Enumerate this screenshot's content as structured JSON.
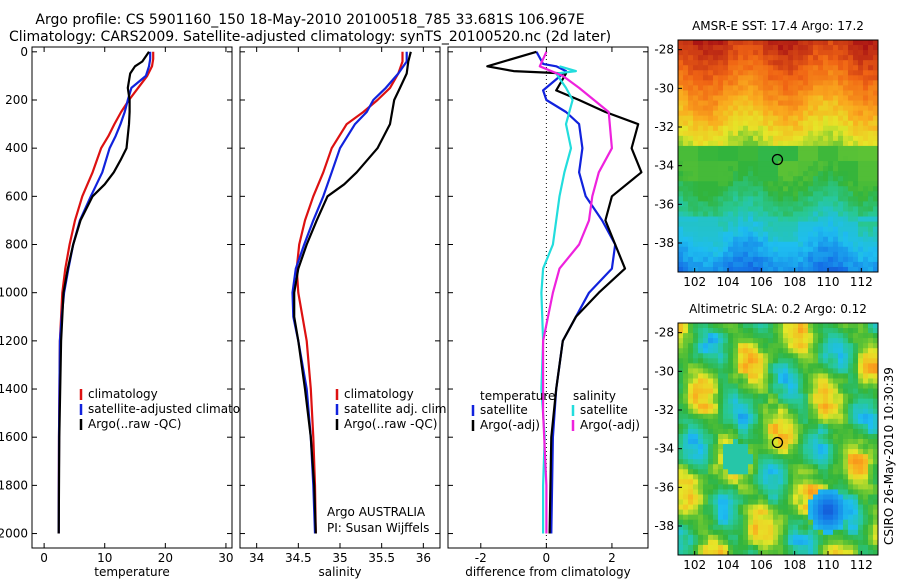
{
  "header": {
    "title_line1": "Argo profile: CS 5901160_150 18-May-2010 20100518_785 33.681S 106.967E",
    "title_line2": "Climatology: CARS2009. Satellite-adjusted climatology: synTS_20100520.nc (2d later)"
  },
  "colors": {
    "red": "#dd1111",
    "blue": "#1122dd",
    "black": "#000000",
    "cyan": "#22dddd",
    "magenta": "#ee22dd"
  },
  "chart_data": [
    {
      "type": "line",
      "id": "temperature",
      "xlabel": "temperature",
      "xlim": [
        -2,
        31
      ],
      "ylim": [
        2060,
        -20
      ],
      "xticks": [
        0,
        10,
        20,
        30
      ],
      "yticks": [
        0,
        200,
        400,
        600,
        800,
        1000,
        1200,
        1400,
        1600,
        1800,
        2000
      ],
      "legend": [
        "climatology",
        "satellite-adjusted climatology",
        "Argo(..raw -QC)"
      ],
      "series": [
        {
          "name": "climatology",
          "color": "red",
          "x": [
            18.0,
            18.0,
            17.8,
            17.0,
            15.5,
            14.0,
            12.7,
            11.6,
            10.6,
            9.4,
            8.0,
            6.3,
            5.1,
            4.2,
            3.5,
            3.0,
            2.6,
            2.45,
            2.4
          ],
          "y": [
            0,
            30,
            60,
            100,
            150,
            200,
            250,
            300,
            350,
            400,
            500,
            600,
            700,
            800,
            900,
            1000,
            1200,
            1600,
            2000
          ]
        },
        {
          "name": "satellite-adjusted climatology",
          "color": "blue",
          "x": [
            17.5,
            17.5,
            17.3,
            16.8,
            14.4,
            13.8,
            13.3,
            12.6,
            11.8,
            10.8,
            9.6,
            7.7,
            5.9,
            4.8,
            4.0,
            3.3,
            2.9,
            2.6,
            2.45,
            2.4
          ],
          "y": [
            0,
            30,
            60,
            100,
            150,
            200,
            250,
            300,
            350,
            400,
            500,
            600,
            700,
            800,
            900,
            1000,
            1100,
            1200,
            1600,
            2000
          ]
        },
        {
          "name": "Argo(..raw -QC)",
          "color": "black",
          "x": [
            17.3,
            16.2,
            15.0,
            14.2,
            13.8,
            14.1,
            14.1,
            14.0,
            13.6,
            12.6,
            11.5,
            10.0,
            8.0,
            6.0,
            4.8,
            3.9,
            3.2,
            2.8,
            2.5,
            2.4
          ],
          "y": [
            0,
            40,
            60,
            90,
            150,
            200,
            250,
            300,
            400,
            450,
            500,
            550,
            600,
            700,
            800,
            900,
            1000,
            1200,
            1600,
            2000
          ]
        }
      ]
    },
    {
      "type": "line",
      "id": "salinity",
      "xlabel": "salinity",
      "xlim": [
        33.8,
        36.2
      ],
      "ylim": [
        2060,
        -20
      ],
      "xticks": [
        34,
        34.5,
        35,
        35.5,
        36
      ],
      "legend": [
        "climatology",
        "satellite adj. clim.",
        "Argo(..raw -QC)"
      ],
      "series": [
        {
          "name": "climatology",
          "color": "red",
          "x": [
            35.75,
            35.75,
            35.7,
            35.6,
            35.45,
            35.28,
            35.08,
            34.9,
            34.8,
            34.68,
            34.58,
            34.51,
            34.48,
            34.5,
            34.55,
            34.6,
            34.65,
            34.68,
            34.7,
            34.71
          ],
          "y": [
            0,
            40,
            90,
            150,
            200,
            250,
            300,
            400,
            500,
            600,
            700,
            800,
            900,
            1000,
            1100,
            1200,
            1400,
            1600,
            1800,
            2000
          ]
        },
        {
          "name": "satellite adj. clim.",
          "color": "blue",
          "x": [
            35.8,
            35.8,
            35.7,
            35.55,
            35.4,
            35.32,
            35.18,
            35.0,
            34.9,
            34.8,
            34.68,
            34.57,
            34.47,
            34.43,
            34.44,
            34.5,
            34.6,
            34.65,
            34.68,
            34.7
          ],
          "y": [
            0,
            40,
            90,
            150,
            200,
            250,
            300,
            400,
            500,
            600,
            700,
            800,
            900,
            1000,
            1100,
            1200,
            1400,
            1600,
            1800,
            2000
          ]
        },
        {
          "name": "Argo(..raw -QC)",
          "color": "black",
          "x": [
            35.85,
            35.82,
            35.8,
            35.72,
            35.65,
            35.6,
            35.45,
            35.2,
            35.05,
            34.85,
            34.72,
            34.6,
            34.5,
            34.45,
            34.45,
            34.5,
            34.58,
            34.65,
            34.69,
            34.71
          ],
          "y": [
            0,
            40,
            90,
            150,
            200,
            300,
            400,
            500,
            550,
            600,
            700,
            800,
            900,
            1000,
            1100,
            1200,
            1400,
            1600,
            1800,
            2000
          ]
        }
      ],
      "annotation": [
        "Argo AUSTRALIA",
        "PI: Susan Wijffels"
      ]
    },
    {
      "type": "line",
      "id": "difference",
      "xlabel": "difference from climatology",
      "xlim": [
        -3,
        3.1
      ],
      "ylim": [
        2060,
        -20
      ],
      "xticks": [
        -2,
        0,
        2
      ],
      "legend_titles": [
        "temperature",
        "salinity"
      ],
      "legend": [
        "satellite",
        "Argo(-adj)",
        "satellite",
        "Argo(-adj)"
      ],
      "series": [
        {
          "name": "temperature satellite",
          "color": "blue",
          "x": [
            -0.3,
            -0.1,
            0.3,
            0.6,
            -0.1,
            0.0,
            0.6,
            1.0,
            1.1,
            1.0,
            1.2,
            1.7,
            2.1,
            2.0,
            1.3,
            0.9,
            0.5,
            0.3,
            0.2,
            0.15
          ],
          "y": [
            0,
            50,
            60,
            80,
            160,
            200,
            250,
            300,
            400,
            500,
            600,
            700,
            800,
            900,
            1000,
            1100,
            1200,
            1400,
            1600,
            2000
          ]
        },
        {
          "name": "temperature Argo(-adj)",
          "color": "black",
          "x": [
            -0.3,
            -1.8,
            -1.0,
            0.6,
            0.3,
            1.0,
            1.8,
            2.8,
            2.6,
            2.9,
            2.0,
            1.8,
            2.1,
            2.4,
            1.6,
            0.9,
            0.5,
            0.3,
            0.15,
            0.1
          ],
          "y": [
            0,
            60,
            80,
            90,
            160,
            200,
            250,
            300,
            400,
            500,
            600,
            700,
            800,
            900,
            1000,
            1100,
            1200,
            1400,
            1600,
            2000
          ]
        },
        {
          "name": "salinity satellite",
          "color": "cyan",
          "x": [
            0.4,
            0.9,
            0.3,
            0.6,
            0.8,
            0.6,
            0.75,
            0.55,
            0.4,
            0.2,
            -0.1,
            -0.15,
            -0.1,
            -0.15,
            -0.05,
            -0.1,
            -0.1
          ],
          "y": [
            60,
            80,
            90,
            150,
            200,
            300,
            400,
            500,
            600,
            800,
            900,
            1000,
            1200,
            1400,
            1600,
            1800,
            2000
          ]
        },
        {
          "name": "salinity Argo(-adj)",
          "color": "magenta",
          "x": [
            0.0,
            -0.2,
            0.5,
            1.0,
            1.9,
            2.0,
            1.6,
            1.4,
            1.3,
            1.0,
            0.4,
            0.2,
            -0.1,
            -0.1,
            0.0,
            0.0
          ],
          "y": [
            0,
            60,
            100,
            150,
            250,
            400,
            500,
            600,
            700,
            800,
            900,
            1000,
            1200,
            1500,
            1800,
            2000
          ]
        }
      ]
    },
    {
      "type": "heatmap",
      "id": "sst",
      "title": "AMSR-E SST: 17.4 Argo: 17.2",
      "xlim": [
        101,
        113
      ],
      "ylim": [
        -39.5,
        -27.5
      ],
      "xticks": [
        102,
        104,
        106,
        108,
        110,
        112
      ],
      "yticks": [
        -28,
        -30,
        -32,
        -34,
        -36,
        -38
      ],
      "marker": {
        "lon": 106.967,
        "lat": -33.681
      }
    },
    {
      "type": "heatmap",
      "id": "sla",
      "title": "Altimetric SLA: 0.2 Argo: 0.12",
      "xlim": [
        101,
        113
      ],
      "ylim": [
        -39.5,
        -27.5
      ],
      "xticks": [
        102,
        104,
        106,
        108,
        110,
        112
      ],
      "yticks": [
        -28,
        -30,
        -32,
        -34,
        -36,
        -38
      ],
      "marker": {
        "lon": 106.967,
        "lat": -33.681
      }
    }
  ],
  "side_text": "CSIRO 26-May-2010 10:30:39"
}
